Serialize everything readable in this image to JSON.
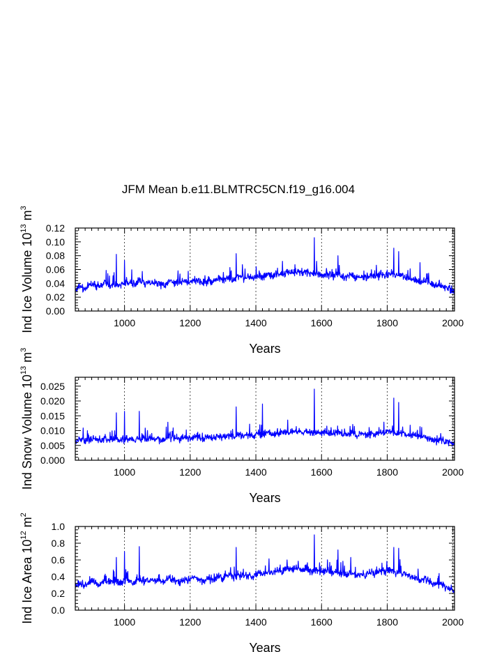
{
  "figure_title": "JFM Mean b.e11.BLMTRC5CN.f19_g16.004",
  "chart_data": [
    {
      "type": "line",
      "ylabel": "Ind Ice Volume 10",
      "ylabel_sup": "13",
      "ylabel_unit": " m",
      "ylabel_unit_sup": "3",
      "xlabel": "Years",
      "xlim": [
        850,
        2005
      ],
      "ylim": [
        0,
        0.12
      ],
      "yticks": [
        "0.00",
        "0.02",
        "0.04",
        "0.06",
        "0.08",
        "0.10",
        "0.12"
      ],
      "xticks": [
        "1000",
        "1200",
        "1400",
        "1600",
        "1800",
        "2000"
      ],
      "series": [
        {
          "name": "Ind Ice Volume",
          "color": "#0000ff",
          "x_start": 850,
          "x_end": 2005,
          "values": [
            0.032,
            0.036,
            0.031,
            0.04,
            0.038,
            0.035,
            0.043,
            0.036,
            0.039,
            0.037,
            0.041,
            0.04,
            0.038,
            0.044,
            0.039,
            0.042,
            0.041,
            0.04,
            0.037,
            0.045,
            0.042,
            0.039,
            0.044,
            0.041,
            0.046,
            0.043,
            0.04,
            0.044,
            0.042,
            0.047,
            0.044,
            0.048,
            0.045,
            0.05,
            0.047,
            0.049,
            0.046,
            0.052,
            0.048,
            0.053,
            0.05,
            0.054,
            0.052,
            0.057,
            0.055,
            0.058,
            0.054,
            0.056,
            0.053,
            0.055,
            0.052,
            0.054,
            0.05,
            0.053,
            0.051,
            0.049,
            0.052,
            0.047,
            0.05,
            0.048,
            0.051,
            0.049,
            0.053,
            0.051,
            0.055,
            0.05,
            0.052,
            0.049,
            0.047,
            0.045,
            0.042,
            0.044,
            0.04,
            0.037,
            0.038,
            0.034,
            0.031,
            0.028
          ],
          "peaks": [
            [
              975,
              0.082
            ],
            [
              1000,
              0.073
            ],
            [
              1340,
              0.083
            ],
            [
              1578,
              0.106
            ],
            [
              1820,
              0.091
            ],
            [
              1835,
              0.086
            ],
            [
              1650,
              0.08
            ],
            [
              1900,
              0.07
            ]
          ]
        }
      ]
    },
    {
      "type": "line",
      "ylabel": "Ind Snow Volume 10",
      "ylabel_sup": "13",
      "ylabel_unit": " m",
      "ylabel_unit_sup": "3",
      "xlabel": "Years",
      "xlim": [
        850,
        2005
      ],
      "ylim": [
        0,
        0.028
      ],
      "yticks": [
        "0.000",
        "0.005",
        "0.010",
        "0.015",
        "0.020",
        "0.025"
      ],
      "xticks": [
        "1000",
        "1200",
        "1400",
        "1600",
        "1800",
        "2000"
      ],
      "series": [
        {
          "name": "Ind Snow Volume",
          "color": "#0000ff",
          "x_start": 850,
          "x_end": 2005,
          "values": [
            0.0065,
            0.007,
            0.0063,
            0.0072,
            0.0068,
            0.0066,
            0.0074,
            0.0069,
            0.0071,
            0.0067,
            0.0073,
            0.0072,
            0.0068,
            0.0076,
            0.007,
            0.0074,
            0.0073,
            0.0071,
            0.0068,
            0.0079,
            0.0074,
            0.007,
            0.0078,
            0.0073,
            0.008,
            0.0076,
            0.0072,
            0.0078,
            0.0075,
            0.0082,
            0.0078,
            0.0084,
            0.008,
            0.0087,
            0.0083,
            0.0086,
            0.0081,
            0.009,
            0.0085,
            0.0092,
            0.0088,
            0.0094,
            0.0091,
            0.0098,
            0.0095,
            0.0099,
            0.0094,
            0.0097,
            0.0093,
            0.0096,
            0.0091,
            0.0094,
            0.0088,
            0.0093,
            0.009,
            0.0087,
            0.0092,
            0.0084,
            0.0089,
            0.0086,
            0.0091,
            0.0088,
            0.0094,
            0.0091,
            0.0097,
            0.009,
            0.0093,
            0.0088,
            0.0085,
            0.0081,
            0.0076,
            0.0079,
            0.0073,
            0.0068,
            0.007,
            0.0063,
            0.0058,
            0.0054
          ],
          "peaks": [
            [
              975,
              0.016
            ],
            [
              1000,
              0.0165
            ],
            [
              1045,
              0.0165
            ],
            [
              1340,
              0.018
            ],
            [
              1578,
              0.024
            ],
            [
              1820,
              0.021
            ],
            [
              1835,
              0.0195
            ],
            [
              1420,
              0.019
            ]
          ]
        }
      ]
    },
    {
      "type": "line",
      "ylabel": "Ind Ice Area 10",
      "ylabel_sup": "12",
      "ylabel_unit": " m",
      "ylabel_unit_sup": "2",
      "xlabel": "Years",
      "xlim": [
        850,
        2005
      ],
      "ylim": [
        0,
        1.0
      ],
      "yticks": [
        "0.0",
        "0.2",
        "0.4",
        "0.6",
        "0.8",
        "1.0"
      ],
      "xticks": [
        "1000",
        "1200",
        "1400",
        "1600",
        "1800",
        "2000"
      ],
      "series": [
        {
          "name": "Ind Ice Area",
          "color": "#0000ff",
          "x_start": 850,
          "x_end": 2005,
          "values": [
            0.3,
            0.33,
            0.29,
            0.35,
            0.33,
            0.31,
            0.37,
            0.33,
            0.35,
            0.32,
            0.36,
            0.35,
            0.33,
            0.38,
            0.34,
            0.37,
            0.36,
            0.35,
            0.33,
            0.39,
            0.36,
            0.34,
            0.38,
            0.36,
            0.4,
            0.37,
            0.35,
            0.38,
            0.36,
            0.41,
            0.38,
            0.42,
            0.39,
            0.43,
            0.41,
            0.42,
            0.4,
            0.45,
            0.42,
            0.46,
            0.44,
            0.47,
            0.45,
            0.5,
            0.48,
            0.51,
            0.47,
            0.49,
            0.46,
            0.48,
            0.45,
            0.47,
            0.44,
            0.46,
            0.44,
            0.43,
            0.45,
            0.41,
            0.44,
            0.42,
            0.45,
            0.43,
            0.47,
            0.45,
            0.49,
            0.44,
            0.46,
            0.43,
            0.41,
            0.39,
            0.36,
            0.38,
            0.34,
            0.31,
            0.32,
            0.28,
            0.25,
            0.22
          ],
          "peaks": [
            [
              975,
              0.63
            ],
            [
              1000,
              0.7
            ],
            [
              1045,
              0.76
            ],
            [
              1340,
              0.75
            ],
            [
              1578,
              0.9
            ],
            [
              1820,
              0.75
            ],
            [
              1835,
              0.74
            ],
            [
              1650,
              0.72
            ]
          ]
        }
      ]
    }
  ]
}
